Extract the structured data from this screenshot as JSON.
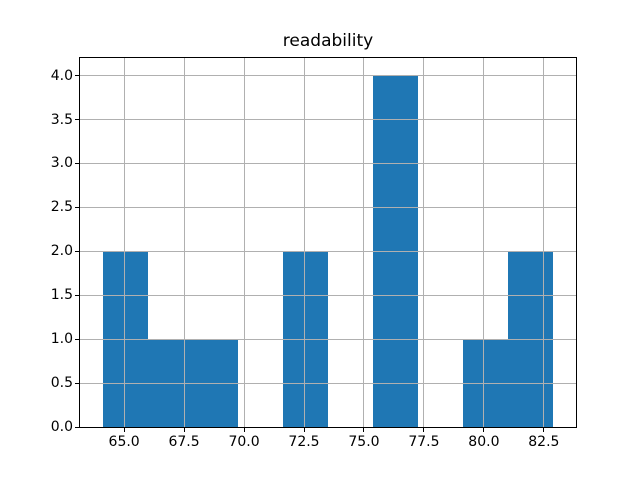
{
  "figure": {
    "background": "#ffffff"
  },
  "chart_data": {
    "type": "bar",
    "subtype": "histogram",
    "title": "readability",
    "xlabel": "",
    "ylabel": "",
    "bin_edges": [
      64.1,
      65.98,
      67.86,
      69.74,
      71.62,
      73.5,
      75.38,
      77.26,
      79.14,
      81.02,
      82.9
    ],
    "counts": [
      2,
      1,
      1,
      0,
      2,
      0,
      4,
      0,
      1,
      2
    ],
    "x_tick_labels": [
      "65.0",
      "67.5",
      "70.0",
      "72.5",
      "75.0",
      "77.5",
      "80.0",
      "82.5"
    ],
    "x_tick_values": [
      65.0,
      67.5,
      70.0,
      72.5,
      75.0,
      77.5,
      80.0,
      82.5
    ],
    "y_tick_labels": [
      "0.0",
      "0.5",
      "1.0",
      "1.5",
      "2.0",
      "2.5",
      "3.0",
      "3.5",
      "4.0"
    ],
    "y_tick_values": [
      0.0,
      0.5,
      1.0,
      1.5,
      2.0,
      2.5,
      3.0,
      3.5,
      4.0
    ],
    "xlim": [
      63.16,
      83.84
    ],
    "ylim": [
      0,
      4.2
    ],
    "grid": true,
    "grid_over_bars": true,
    "legend": false,
    "bar_color": "#1f77b4",
    "grid_color": "#b0b0b0",
    "spine_color": "#000000",
    "tick_color": "#000000"
  }
}
